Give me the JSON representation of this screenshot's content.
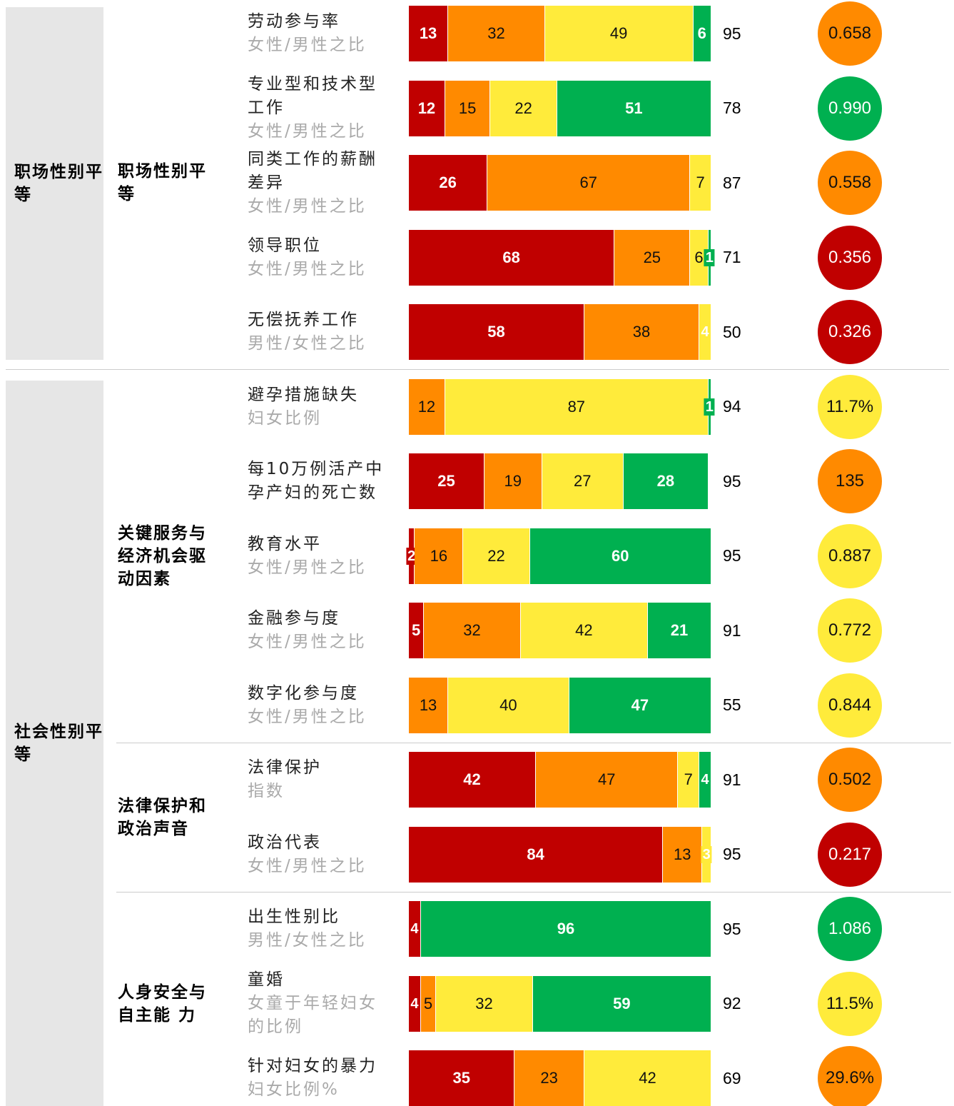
{
  "xlim": [
    0,
    100
  ],
  "colors": {
    "red": "#c00000",
    "orange": "#ff8a00",
    "yellow": "#ffeb3b",
    "green": "#00b050"
  },
  "sections": [
    {
      "label": "职场性别平等",
      "groups": [
        {
          "label": "职场性别平等",
          "rows": [
            {
              "label": "劳动参与率",
              "sublabel": "女性/男性之比",
              "segments": [
                {
                  "value": 13,
                  "color": "red"
                },
                {
                  "value": 32,
                  "color": "orange"
                },
                {
                  "value": 49,
                  "color": "yellow"
                },
                {
                  "value": 6,
                  "color": "green"
                }
              ],
              "count": 95,
              "score": "0.658",
              "score_color": "orange"
            },
            {
              "label": "专业型和技术型工作",
              "sublabel": "女性/男性之比",
              "segments": [
                {
                  "value": 12,
                  "color": "red"
                },
                {
                  "value": 15,
                  "color": "orange"
                },
                {
                  "value": 22,
                  "color": "yellow"
                },
                {
                  "value": 51,
                  "color": "green"
                }
              ],
              "count": 78,
              "score": "0.990",
              "score_color": "green"
            },
            {
              "label": "同类工作的薪酬差异",
              "sublabel": "女性/男性之比",
              "segments": [
                {
                  "value": 26,
                  "color": "red"
                },
                {
                  "value": 67,
                  "color": "orange"
                },
                {
                  "value": 7,
                  "color": "yellow"
                }
              ],
              "count": 87,
              "score": "0.558",
              "score_color": "orange"
            },
            {
              "label": "领导职位",
              "sublabel": "女性/男性之比",
              "segments": [
                {
                  "value": 68,
                  "color": "red"
                },
                {
                  "value": 25,
                  "color": "orange"
                },
                {
                  "value": 6,
                  "color": "yellow"
                },
                {
                  "value": 1,
                  "color": "green"
                }
              ],
              "count": 71,
              "score": "0.356",
              "score_color": "red"
            },
            {
              "label": "无偿抚养工作",
              "sublabel": "男性/女性之比",
              "segments": [
                {
                  "value": 58,
                  "color": "red"
                },
                {
                  "value": 38,
                  "color": "orange"
                },
                {
                  "value": 4,
                  "color": "yellow"
                }
              ],
              "count": 50,
              "score": "0.326",
              "score_color": "red"
            }
          ]
        }
      ]
    },
    {
      "label": "社会性别平等",
      "groups": [
        {
          "label": "关键服务与经济机会驱动因素",
          "rows": [
            {
              "label": "避孕措施缺失",
              "sublabel": "妇女比例",
              "segments": [
                {
                  "value": 12,
                  "color": "orange"
                },
                {
                  "value": 87,
                  "color": "yellow"
                },
                {
                  "value": 1,
                  "color": "green"
                }
              ],
              "count": 94,
              "score": "11.7%",
              "score_color": "yellow"
            },
            {
              "label": "每10万例活产中孕产妇的死亡数",
              "segments": [
                {
                  "value": 25,
                  "color": "red"
                },
                {
                  "value": 19,
                  "color": "orange"
                },
                {
                  "value": 27,
                  "color": "yellow"
                },
                {
                  "value": 28,
                  "color": "green"
                }
              ],
              "count": 95,
              "score": "135",
              "score_color": "orange"
            },
            {
              "label": "教育水平",
              "sublabel": "女性/男性之比",
              "segments": [
                {
                  "value": 2,
                  "color": "red"
                },
                {
                  "value": 16,
                  "color": "orange"
                },
                {
                  "value": 22,
                  "color": "yellow"
                },
                {
                  "value": 60,
                  "color": "green"
                }
              ],
              "count": 95,
              "score": "0.887",
              "score_color": "yellow"
            },
            {
              "label": "金融参与度",
              "sublabel": "女性/男性之比",
              "segments": [
                {
                  "value": 5,
                  "color": "red"
                },
                {
                  "value": 32,
                  "color": "orange"
                },
                {
                  "value": 42,
                  "color": "yellow"
                },
                {
                  "value": 21,
                  "color": "green"
                }
              ],
              "count": 91,
              "score": "0.772",
              "score_color": "yellow"
            },
            {
              "label": "数字化参与度",
              "sublabel": "女性/男性之比",
              "segments": [
                {
                  "value": 13,
                  "color": "orange"
                },
                {
                  "value": 40,
                  "color": "yellow"
                },
                {
                  "value": 47,
                  "color": "green"
                }
              ],
              "count": 55,
              "score": "0.844",
              "score_color": "yellow"
            }
          ]
        },
        {
          "label": "法律保护和政治声音",
          "rows": [
            {
              "label": "法律保护",
              "sublabel": "指数",
              "segments": [
                {
                  "value": 42,
                  "color": "red"
                },
                {
                  "value": 47,
                  "color": "orange"
                },
                {
                  "value": 7,
                  "color": "yellow"
                },
                {
                  "value": 4,
                  "color": "green"
                }
              ],
              "count": 91,
              "score": "0.502",
              "score_color": "orange"
            },
            {
              "label": "政治代表",
              "sublabel": "女性/男性之比",
              "segments": [
                {
                  "value": 84,
                  "color": "red"
                },
                {
                  "value": 13,
                  "color": "orange"
                },
                {
                  "value": 3,
                  "color": "yellow"
                }
              ],
              "count": 95,
              "score": "0.217",
              "score_color": "red"
            }
          ]
        },
        {
          "label": "人身安全与自主能 力",
          "rows": [
            {
              "label": "出生性别比",
              "sublabel": "男性/女性之比",
              "segments": [
                {
                  "value": 4,
                  "color": "red"
                },
                {
                  "value": 96,
                  "color": "green"
                }
              ],
              "count": 95,
              "score": "1.086",
              "score_color": "green"
            },
            {
              "label": "童婚",
              "sublabel": "女童于年轻妇女的比例",
              "segments": [
                {
                  "value": 4,
                  "color": "red"
                },
                {
                  "value": 5,
                  "color": "orange"
                },
                {
                  "value": 32,
                  "color": "yellow"
                },
                {
                  "value": 59,
                  "color": "green"
                }
              ],
              "count": 92,
              "score": "11.5%",
              "score_color": "yellow"
            },
            {
              "label": "针对妇女的暴力",
              "sublabel": "妇女比例%",
              "segments": [
                {
                  "value": 35,
                  "color": "red"
                },
                {
                  "value": 23,
                  "color": "orange"
                },
                {
                  "value": 42,
                  "color": "yellow"
                }
              ],
              "count": 69,
              "score": "29.6%",
              "score_color": "orange"
            }
          ]
        }
      ]
    }
  ]
}
